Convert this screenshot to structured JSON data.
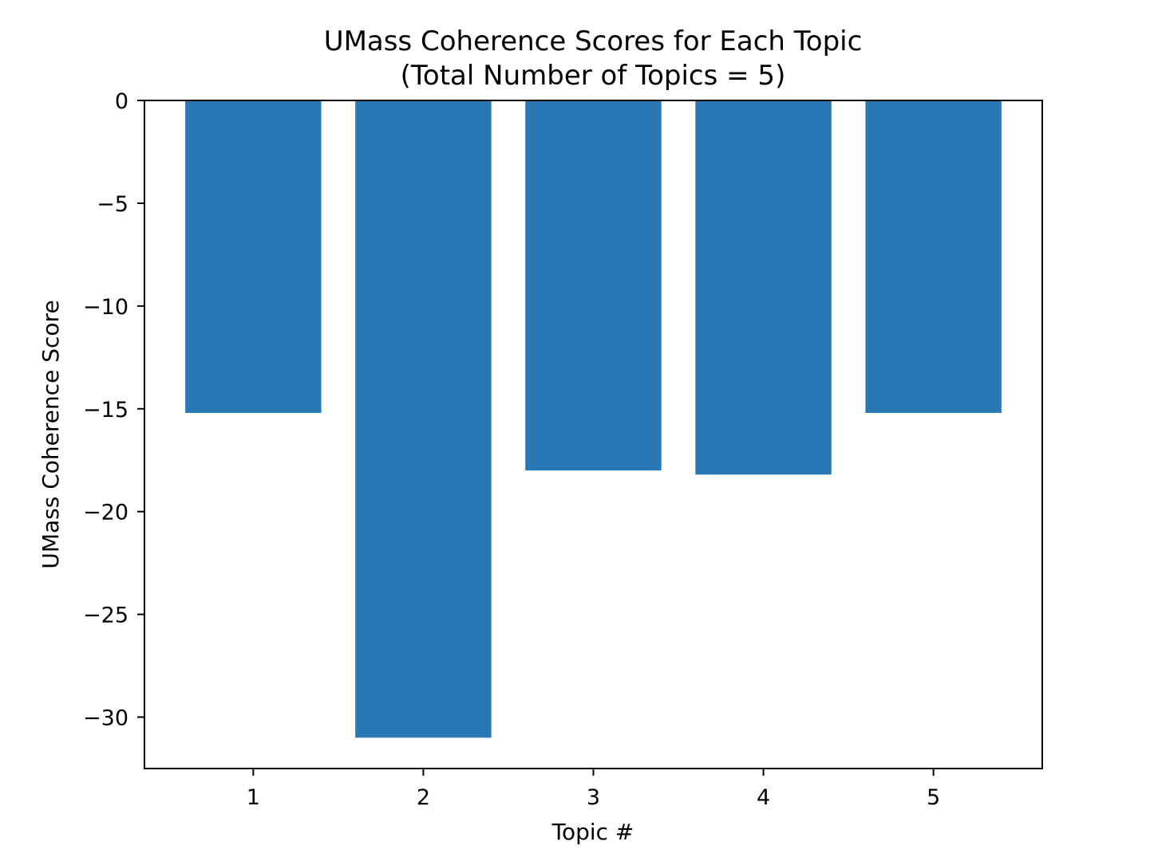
{
  "chart_data": {
    "type": "bar",
    "title": "UMass Coherence Scores for Each Topic",
    "subtitle": "(Total Number of Topics = 5)",
    "xlabel": "Topic #",
    "ylabel": "UMass Coherence Score",
    "categories": [
      "1",
      "2",
      "3",
      "4",
      "5"
    ],
    "values": [
      -15.2,
      -31.0,
      -18.0,
      -18.2,
      -15.2
    ],
    "ylim": [
      -32.5,
      0
    ],
    "yticks": [
      0,
      -5,
      -10,
      -15,
      -20,
      -25,
      -30
    ],
    "ytick_labels": [
      "0",
      "−5",
      "−10",
      "−15",
      "−20",
      "−25",
      "−30"
    ],
    "bar_color": "#2878b5",
    "grid": false,
    "legend": "none"
  }
}
